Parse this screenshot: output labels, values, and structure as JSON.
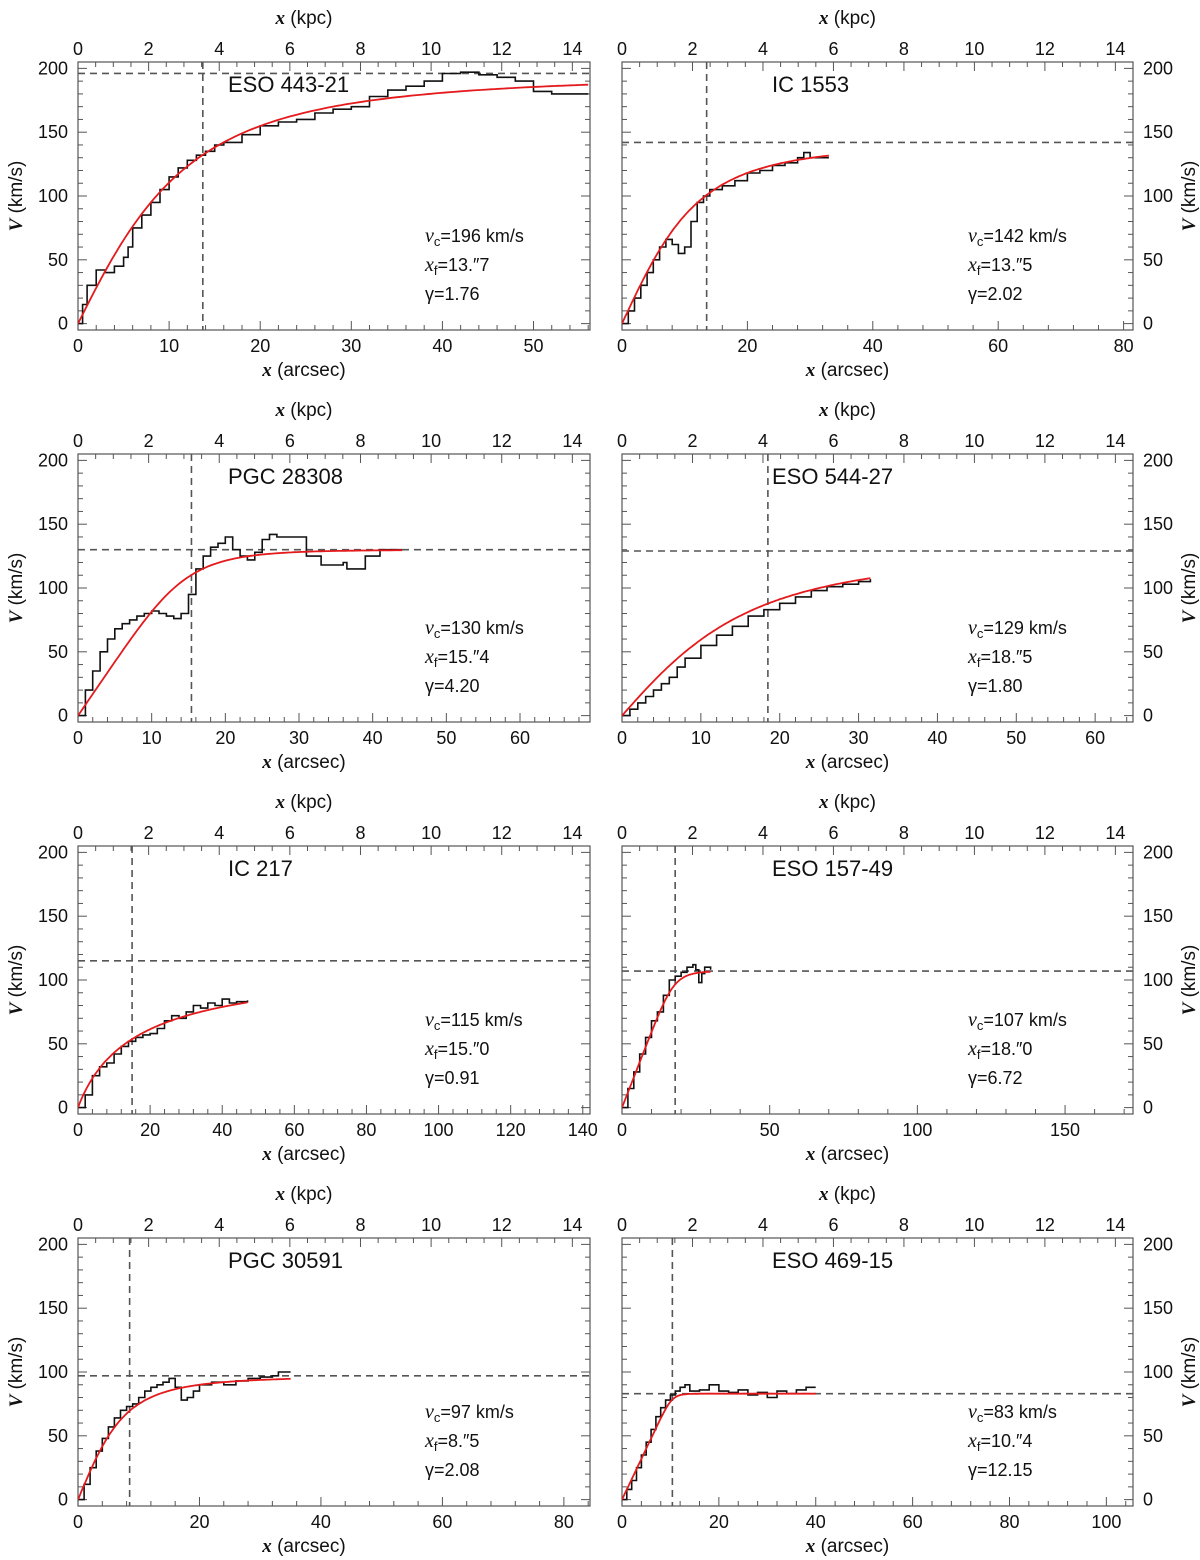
{
  "figure": {
    "top_axis_label": "x (kpc)",
    "bottom_axis_label": "x (arcsec)",
    "left_axis_label": "V (km/s)",
    "kpc_ticks": [
      0,
      2,
      4,
      6,
      8,
      10,
      12,
      14
    ],
    "v_ticks": [
      0,
      50,
      100,
      150,
      200
    ]
  },
  "chart_data": [
    {
      "type": "line",
      "galaxy": "ESO 443-21",
      "xlabel": "x (arcsec)",
      "ylabel": "V (km/s)",
      "x2label": "x (kpc)",
      "xlim": [
        0,
        56.2
      ],
      "ylim": [
        -5,
        205
      ],
      "x2lim": [
        0,
        14.5
      ],
      "x_ticks": [
        0,
        10,
        20,
        30,
        40,
        50
      ],
      "vc": 196,
      "xf": 13.7,
      "gamma": 1.76,
      "vc_label": "=196 km/s",
      "xf_label": "=13.″7",
      "gamma_label": "γ=1.76",
      "observed": {
        "x": [
          0,
          0.5,
          1,
          2,
          3,
          4,
          5,
          5.5,
          6,
          7,
          8,
          9,
          10,
          11,
          12,
          13,
          14,
          15,
          16,
          18,
          20,
          22,
          24,
          26,
          28,
          30,
          32,
          34,
          36,
          38,
          40,
          42,
          44,
          46,
          48,
          50,
          52,
          56
        ],
        "v": [
          0,
          15,
          30,
          42,
          40,
          45,
          52,
          60,
          75,
          85,
          95,
          105,
          115,
          122,
          128,
          132,
          135,
          140,
          142,
          148,
          155,
          158,
          160,
          165,
          168,
          170,
          178,
          183,
          186,
          190,
          196,
          197,
          195,
          193,
          190,
          182,
          180,
          180
        ]
      }
    },
    {
      "type": "line",
      "galaxy": "IC 1553",
      "xlabel": "x (arcsec)",
      "ylabel": "V (km/s)",
      "x2label": "x (kpc)",
      "xlim": [
        0,
        81.5
      ],
      "ylim": [
        -5,
        205
      ],
      "x2lim": [
        0,
        14.5
      ],
      "x_ticks": [
        0,
        20,
        40,
        60,
        80
      ],
      "vc": 142,
      "xf": 13.5,
      "gamma": 2.02,
      "vc_label": "=142 km/s",
      "xf_label": "=13.″5",
      "gamma_label": "γ=2.02",
      "observed": {
        "x": [
          0,
          1,
          2,
          3,
          4,
          5,
          6,
          7,
          8,
          9,
          10,
          11,
          12,
          13,
          14,
          16,
          18,
          20,
          22,
          24,
          26,
          28,
          29,
          30,
          31,
          33
        ],
        "v": [
          0,
          10,
          20,
          30,
          40,
          50,
          60,
          66,
          62,
          55,
          60,
          80,
          95,
          100,
          105,
          108,
          112,
          118,
          120,
          124,
          126,
          130,
          134,
          130,
          130,
          130
        ]
      }
    },
    {
      "type": "line",
      "galaxy": "PGC 28308",
      "xlabel": "x (arcsec)",
      "ylabel": "V (km/s)",
      "x2label": "x (kpc)",
      "xlim": [
        0,
        69.5
      ],
      "ylim": [
        -5,
        205
      ],
      "x2lim": [
        0,
        14.5
      ],
      "x_ticks": [
        0,
        10,
        20,
        30,
        40,
        50,
        60
      ],
      "vc": 130,
      "xf": 15.4,
      "gamma": 4.2,
      "vc_label": "=130 km/s",
      "xf_label": "=15.″4",
      "gamma_label": "γ=4.20",
      "observed": {
        "x": [
          0,
          1,
          2,
          3,
          4,
          5,
          6,
          7,
          8,
          9,
          10,
          11,
          12,
          13,
          14,
          15,
          16,
          17,
          18,
          19,
          20,
          21,
          22,
          23,
          24,
          25,
          26,
          27,
          29,
          31,
          33,
          36,
          36.5,
          39,
          41,
          44
        ],
        "v": [
          0,
          20,
          35,
          50,
          60,
          68,
          72,
          75,
          78,
          80,
          82,
          80,
          78,
          76,
          80,
          95,
          115,
          125,
          132,
          135,
          140,
          130,
          125,
          122,
          128,
          138,
          142,
          140,
          140,
          125,
          118,
          120,
          115,
          125,
          130,
          130
        ]
      }
    },
    {
      "type": "line",
      "galaxy": "ESO 544-27",
      "xlabel": "x (arcsec)",
      "ylabel": "V (km/s)",
      "x2label": "x (kpc)",
      "xlim": [
        0,
        64.8
      ],
      "ylim": [
        -5,
        205
      ],
      "x2lim": [
        0,
        14.5
      ],
      "x_ticks": [
        0,
        10,
        20,
        30,
        40,
        50,
        60
      ],
      "vc": 129,
      "xf": 18.5,
      "gamma": 1.8,
      "vc_label": "=129 km/s",
      "xf_label": "=18.″5",
      "gamma_label": "γ=1.80",
      "observed": {
        "x": [
          0,
          1,
          2,
          3,
          4,
          5,
          6,
          7,
          8,
          10,
          12,
          14,
          16,
          18,
          20,
          22,
          24,
          26,
          28,
          30,
          31.5
        ],
        "v": [
          0,
          5,
          10,
          15,
          20,
          25,
          30,
          38,
          45,
          55,
          63,
          70,
          78,
          83,
          88,
          93,
          98,
          101,
          103,
          105,
          107
        ]
      }
    },
    {
      "type": "line",
      "galaxy": "IC 217",
      "xlabel": "x (arcsec)",
      "ylabel": "V (km/s)",
      "x2label": "x (kpc)",
      "xlim": [
        0,
        142
      ],
      "ylim": [
        -5,
        205
      ],
      "x2lim": [
        0,
        14.5
      ],
      "x_ticks": [
        0,
        20,
        40,
        60,
        80,
        100,
        120,
        140
      ],
      "vc": 115,
      "xf": 15.0,
      "gamma": 0.91,
      "vc_label": "=115 km/s",
      "xf_label": "=15.″0",
      "gamma_label": "γ=0.91",
      "observed": {
        "x": [
          0,
          2,
          4,
          6,
          8,
          10,
          12,
          14,
          16,
          18,
          20,
          22,
          24,
          26,
          28,
          30,
          32,
          34,
          36,
          38,
          40,
          42,
          44,
          47
        ],
        "v": [
          0,
          10,
          25,
          32,
          35,
          42,
          48,
          52,
          55,
          57,
          58,
          62,
          68,
          72,
          70,
          75,
          80,
          78,
          82,
          80,
          85,
          82,
          83,
          84
        ]
      }
    },
    {
      "type": "line",
      "galaxy": "ESO 157-49",
      "xlabel": "x (arcsec)",
      "ylabel": "V (km/s)",
      "x2label": "x (kpc)",
      "xlim": [
        0,
        173
      ],
      "ylim": [
        -5,
        205
      ],
      "x2lim": [
        0,
        14.5
      ],
      "x_ticks": [
        0,
        50,
        100,
        150
      ],
      "vc": 107,
      "xf": 18.0,
      "gamma": 6.72,
      "vc_label": "=107 km/s",
      "xf_label": "=18.″0",
      "gamma_label": "γ=6.72",
      "observed": {
        "x": [
          0,
          2,
          4,
          6,
          8,
          10,
          12,
          14,
          16,
          18,
          20,
          22,
          24,
          25,
          26,
          27,
          28,
          30
        ],
        "v": [
          0,
          15,
          28,
          42,
          55,
          68,
          75,
          88,
          100,
          103,
          106,
          110,
          112,
          108,
          98,
          105,
          110,
          108
        ]
      }
    },
    {
      "type": "line",
      "galaxy": "PGC 30591",
      "xlabel": "x (arcsec)",
      "ylabel": "V (km/s)",
      "x2label": "x (kpc)",
      "xlim": [
        0,
        84.3
      ],
      "ylim": [
        -5,
        205
      ],
      "x2lim": [
        0,
        14.5
      ],
      "x_ticks": [
        0,
        20,
        40,
        60,
        80
      ],
      "vc": 97,
      "xf": 8.5,
      "gamma": 2.08,
      "vc_label": "=97 km/s",
      "xf_label": "=8.″5",
      "gamma_label": "γ=2.08",
      "observed": {
        "x": [
          0,
          1,
          2,
          3,
          4,
          5,
          6,
          7,
          8,
          9,
          10,
          11,
          12,
          13,
          14,
          15,
          16,
          17,
          18,
          19,
          20,
          22,
          24,
          26,
          28,
          30,
          32,
          33,
          35
        ],
        "v": [
          0,
          12,
          25,
          38,
          48,
          57,
          64,
          70,
          73,
          75,
          80,
          85,
          88,
          90,
          92,
          95,
          88,
          78,
          80,
          85,
          90,
          92,
          90,
          93,
          95,
          96,
          97,
          100,
          100
        ]
      }
    },
    {
      "type": "line",
      "galaxy": "ESO 469-15",
      "xlabel": "x (arcsec)",
      "ylabel": "V (km/s)",
      "x2label": "x (kpc)",
      "xlim": [
        0,
        105.5
      ],
      "ylim": [
        -5,
        205
      ],
      "x2lim": [
        0,
        14.5
      ],
      "x_ticks": [
        0,
        20,
        40,
        60,
        80,
        100
      ],
      "vc": 83,
      "xf": 10.4,
      "gamma": 12.15,
      "vc_label": "=83 km/s",
      "xf_label": "=10.″4",
      "gamma_label": "γ=12.15",
      "observed": {
        "x": [
          0,
          1,
          2,
          3,
          4,
          5,
          6,
          7,
          8,
          9,
          10,
          11,
          12,
          13,
          14,
          16,
          18,
          20,
          22,
          24,
          26,
          28,
          30,
          32,
          34,
          36,
          38,
          40
        ],
        "v": [
          0,
          8,
          15,
          25,
          35,
          45,
          55,
          65,
          72,
          78,
          82,
          85,
          88,
          90,
          85,
          86,
          90,
          85,
          84,
          86,
          82,
          84,
          80,
          85,
          83,
          86,
          88,
          88
        ]
      }
    }
  ]
}
